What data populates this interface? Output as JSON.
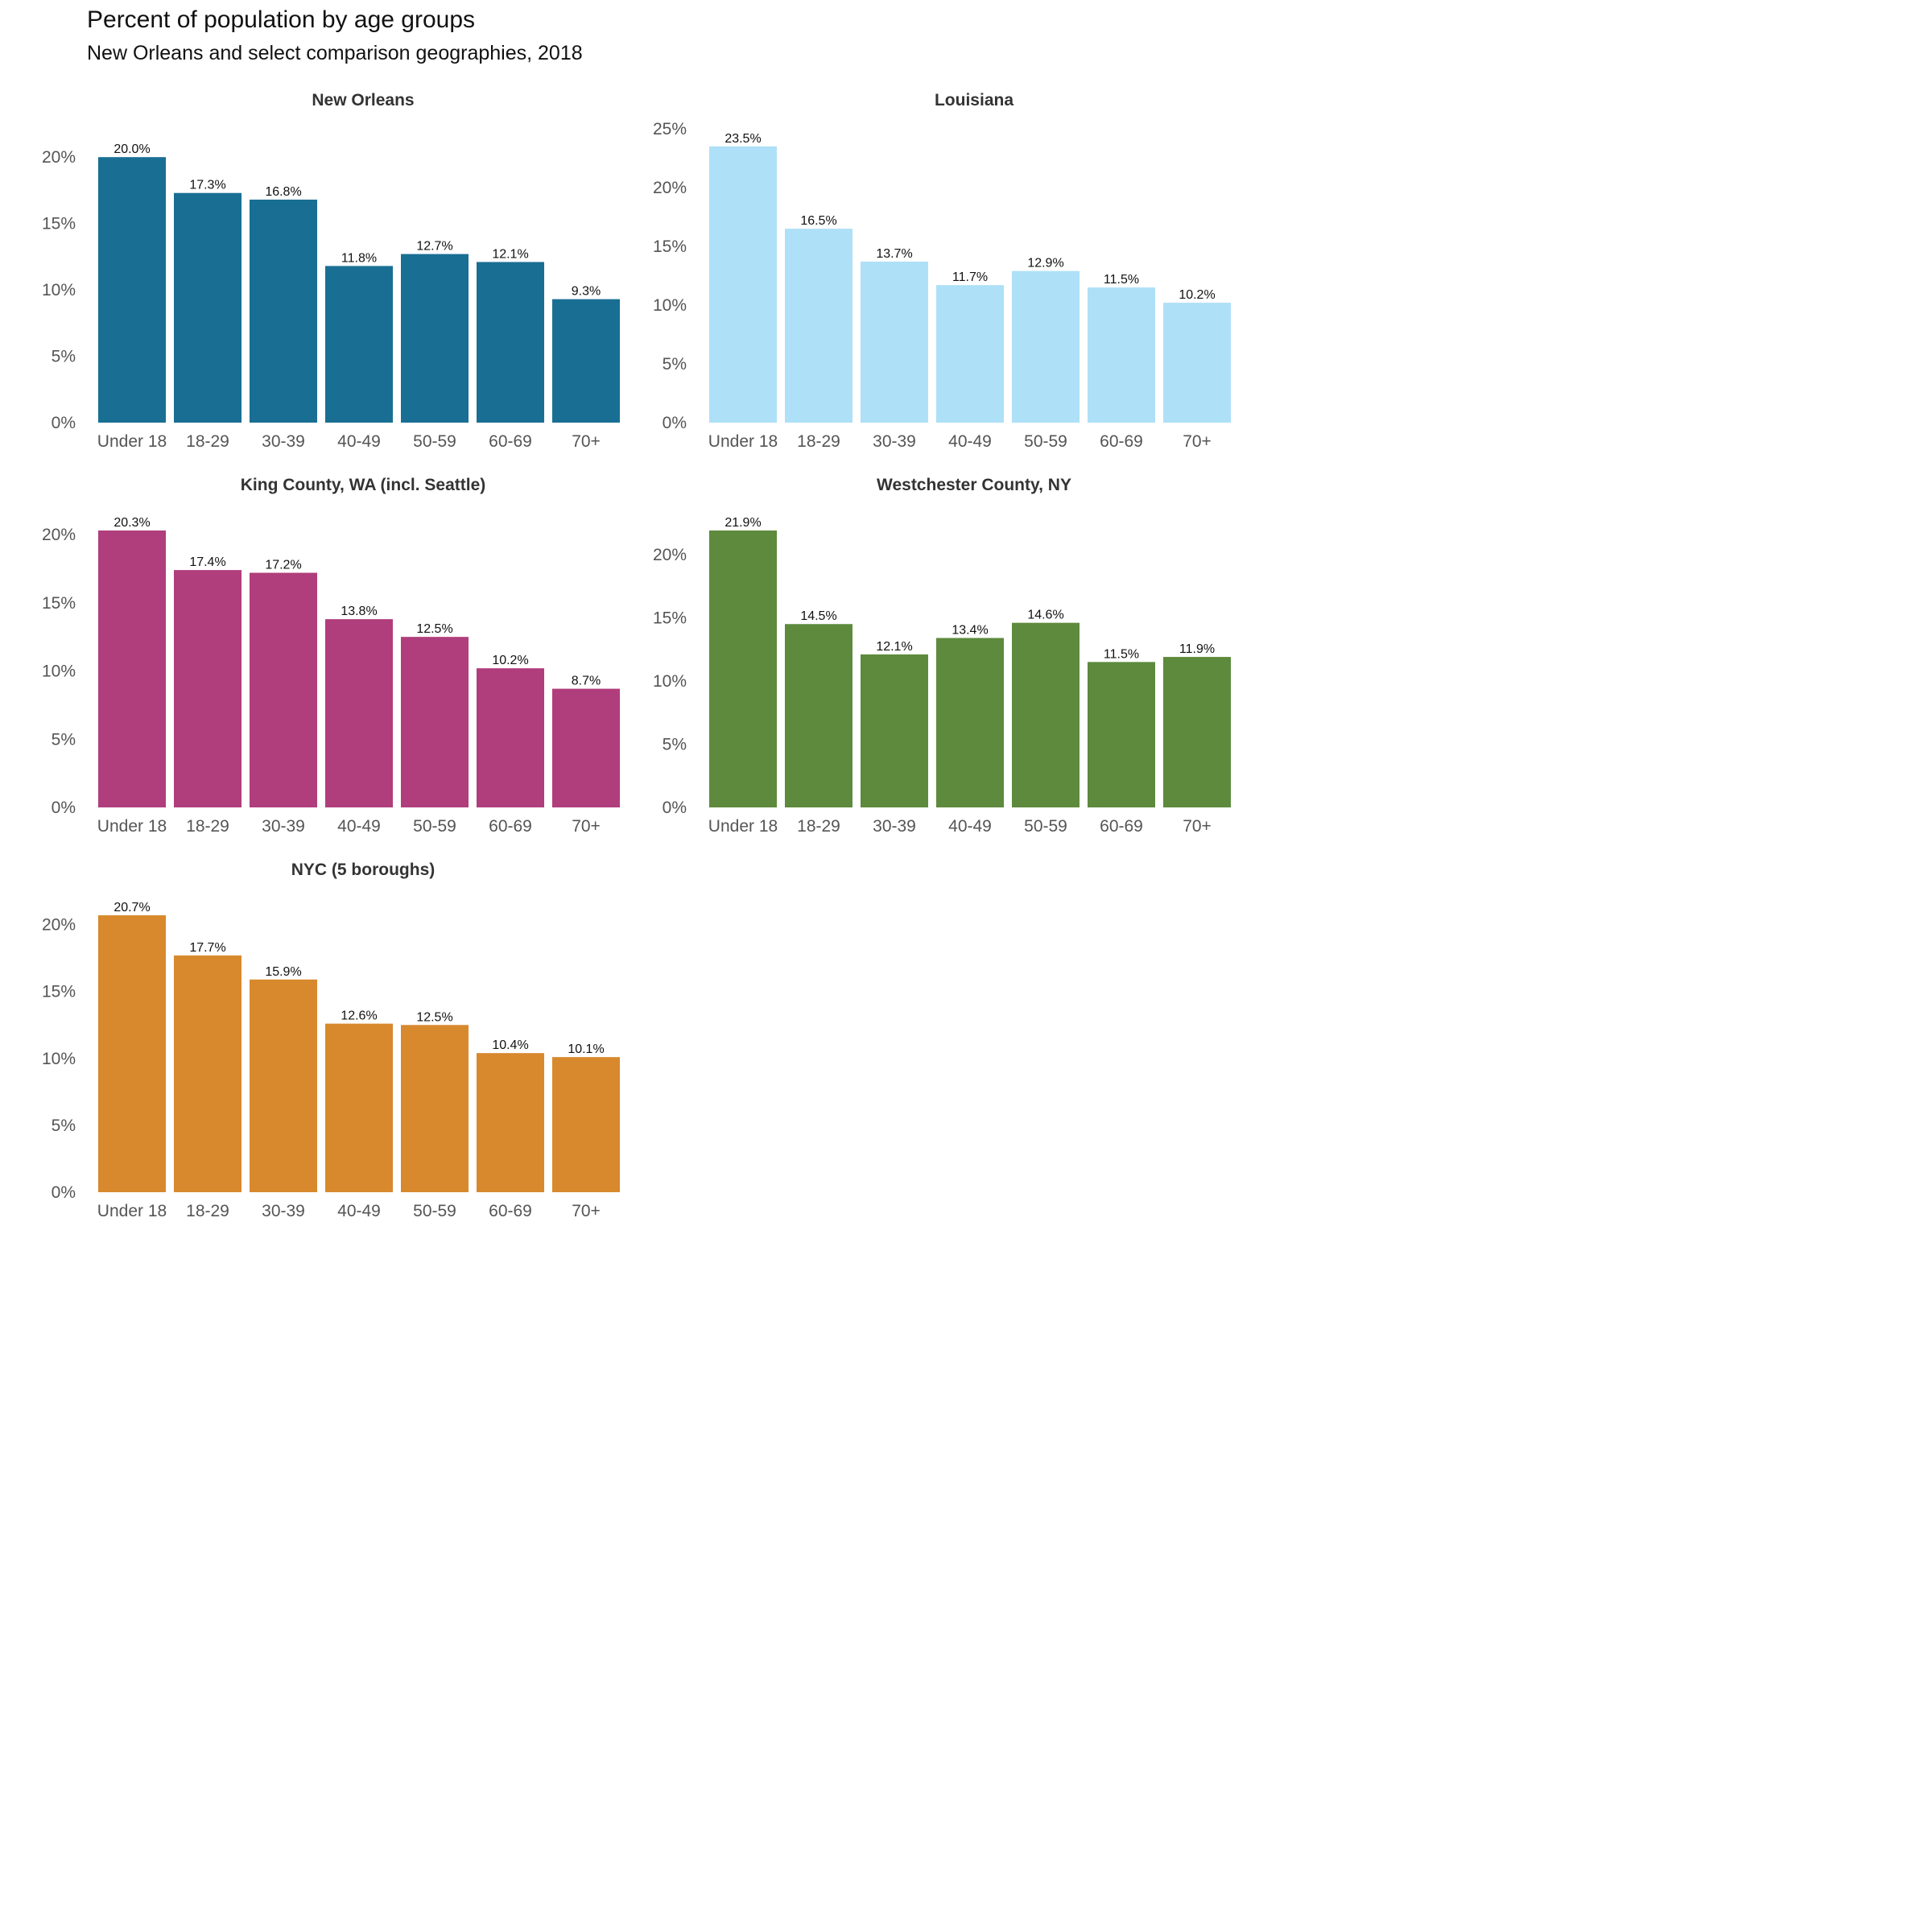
{
  "header": {
    "title": "Percent of population by age groups",
    "subtitle": "New Orleans and select comparison geographies, 2018"
  },
  "chart_data": [
    {
      "type": "bar",
      "title": "New Orleans",
      "color": "#196f93",
      "categories": [
        "Under 18",
        "18-29",
        "30-39",
        "40-49",
        "50-59",
        "60-69",
        "70+"
      ],
      "values": [
        20.0,
        17.3,
        16.8,
        11.8,
        12.7,
        12.1,
        9.3
      ],
      "data_labels": [
        "20.0%",
        "17.3%",
        "16.8%",
        "11.8%",
        "12.7%",
        "12.1%",
        "9.3%"
      ],
      "yticks": [
        0,
        5,
        10,
        15,
        20
      ],
      "ytick_labels": [
        "0%",
        "5%",
        "10%",
        "15%",
        "20%"
      ],
      "ylim": [
        0,
        20.8
      ],
      "xlabel": "",
      "ylabel": "",
      "grid": false
    },
    {
      "type": "bar",
      "title": "Louisiana",
      "color": "#aee0f8",
      "categories": [
        "Under 18",
        "18-29",
        "30-39",
        "40-49",
        "50-59",
        "60-69",
        "70+"
      ],
      "values": [
        23.5,
        16.5,
        13.7,
        11.7,
        12.9,
        11.5,
        10.2
      ],
      "data_labels": [
        "23.5%",
        "16.5%",
        "13.7%",
        "11.7%",
        "12.9%",
        "11.5%",
        "10.2%"
      ],
      "yticks": [
        0,
        5,
        10,
        15,
        20,
        25
      ],
      "ytick_labels": [
        "0%",
        "5%",
        "10%",
        "15%",
        "20%",
        "25%"
      ],
      "ylim": [
        0,
        25
      ],
      "xlabel": "",
      "ylabel": "",
      "grid": false
    },
    {
      "type": "bar",
      "title": "King County, WA (incl. Seattle)",
      "color": "#b03d7c",
      "categories": [
        "Under 18",
        "18-29",
        "30-39",
        "40-49",
        "50-59",
        "60-69",
        "70+"
      ],
      "values": [
        20.3,
        17.4,
        17.2,
        13.8,
        12.5,
        10.2,
        8.7
      ],
      "data_labels": [
        "20.3%",
        "17.4%",
        "17.2%",
        "13.8%",
        "12.5%",
        "10.2%",
        "8.7%"
      ],
      "yticks": [
        0,
        5,
        10,
        15,
        20
      ],
      "ytick_labels": [
        "0%",
        "5%",
        "10%",
        "15%",
        "20%"
      ],
      "ylim": [
        0,
        20.3
      ],
      "xlabel": "",
      "ylabel": "",
      "grid": false
    },
    {
      "type": "bar",
      "title": "Westchester County, NY",
      "color": "#5d8a3c",
      "categories": [
        "Under 18",
        "18-29",
        "30-39",
        "40-49",
        "50-59",
        "60-69",
        "70+"
      ],
      "values": [
        21.9,
        14.5,
        12.1,
        13.4,
        14.6,
        11.5,
        11.9
      ],
      "data_labels": [
        "21.9%",
        "14.5%",
        "12.1%",
        "13.4%",
        "14.6%",
        "11.5%",
        "11.9%"
      ],
      "yticks": [
        0,
        5,
        10,
        15,
        20
      ],
      "ytick_labels": [
        "0%",
        "5%",
        "10%",
        "15%",
        "20%"
      ],
      "ylim": [
        0,
        21.9
      ],
      "xlabel": "",
      "ylabel": "",
      "grid": false
    },
    {
      "type": "bar",
      "title": "NYC (5 boroughs)",
      "color": "#d8892d",
      "categories": [
        "Under 18",
        "18-29",
        "30-39",
        "40-49",
        "50-59",
        "60-69",
        "70+"
      ],
      "values": [
        20.7,
        17.7,
        15.9,
        12.6,
        12.5,
        10.4,
        10.1
      ],
      "data_labels": [
        "20.7%",
        "17.7%",
        "15.9%",
        "12.6%",
        "12.5%",
        "10.4%",
        "10.1%"
      ],
      "yticks": [
        0,
        5,
        10,
        15,
        20
      ],
      "ytick_labels": [
        "0%",
        "5%",
        "10%",
        "15%",
        "20%"
      ],
      "ylim": [
        0,
        20.7
      ],
      "xlabel": "",
      "ylabel": "",
      "grid": false
    }
  ]
}
